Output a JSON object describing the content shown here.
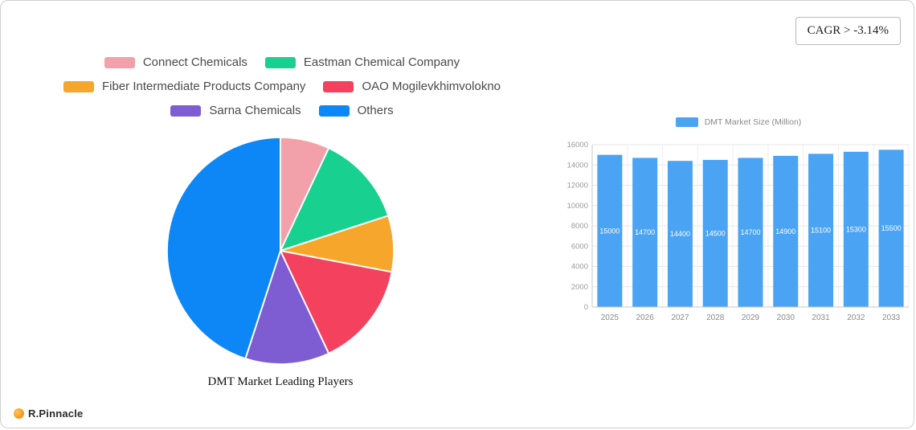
{
  "header": {
    "cagr": "CAGR > -3.14%"
  },
  "footer": {
    "brand": "R.Pinnacle",
    "logo_icon": "orange-circle"
  },
  "chart_data": [
    {
      "type": "pie",
      "title": "DMT Market Leading Players",
      "legend_position": "top",
      "labels": [
        "Connect Chemicals",
        "Eastman Chemical Company",
        "Fiber Intermediate Products Company",
        "OAO Mogilevkhimvolokno",
        "Sarna Chemicals",
        "Others"
      ],
      "values": [
        7,
        13,
        8,
        15,
        12,
        45
      ],
      "colors": [
        "#f2a0aa",
        "#18d190",
        "#f6a72b",
        "#f4415e",
        "#7d5dd1",
        "#0d87f5"
      ]
    },
    {
      "type": "bar",
      "legend": "DMT Market Size (Million)",
      "bar_color": "#4ba3f3",
      "categories": [
        "2025",
        "2026",
        "2027",
        "2028",
        "2029",
        "2030",
        "2031",
        "2032",
        "2033"
      ],
      "values": [
        15000,
        14700,
        14400,
        14500,
        14700,
        14900,
        15100,
        15300,
        15500
      ],
      "ylim": [
        0,
        16000
      ],
      "yticks": [
        0,
        2000,
        4000,
        6000,
        8000,
        10000,
        12000,
        14000,
        16000
      ],
      "grid": true,
      "value_label_color": "#ffffff"
    }
  ]
}
